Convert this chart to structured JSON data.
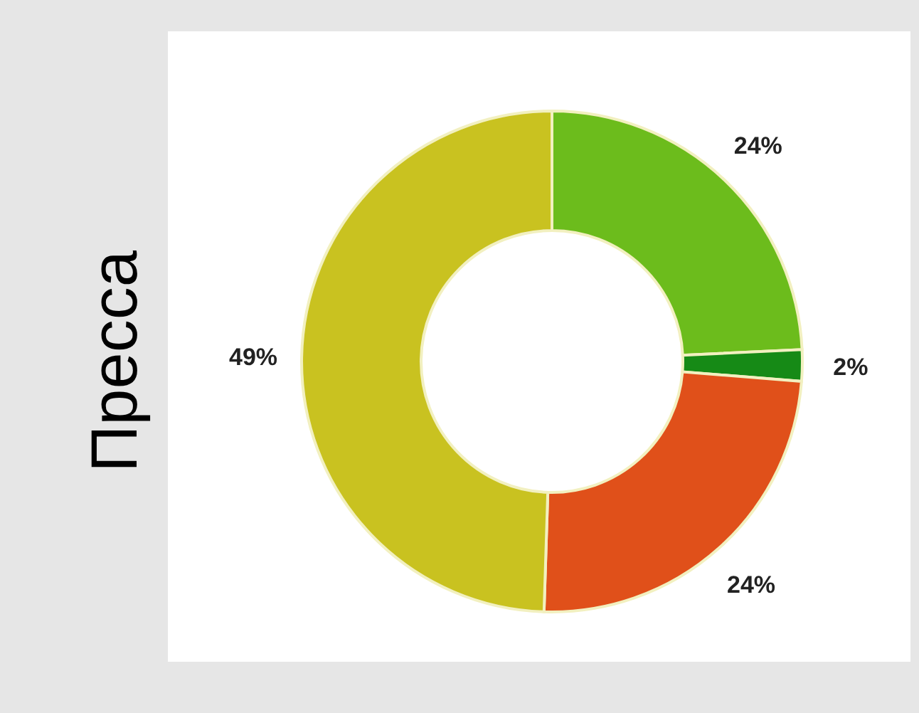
{
  "chart_data": {
    "type": "donut",
    "title": "Пресса",
    "categories": [
      null,
      null,
      null,
      null
    ],
    "values": [
      24,
      2,
      24,
      49
    ],
    "colors": [
      "#6cbc1c",
      "#168a16",
      "#e0501a",
      "#c9c220"
    ],
    "value_labels": [
      "24%",
      "2%",
      "24%",
      "49%"
    ]
  }
}
